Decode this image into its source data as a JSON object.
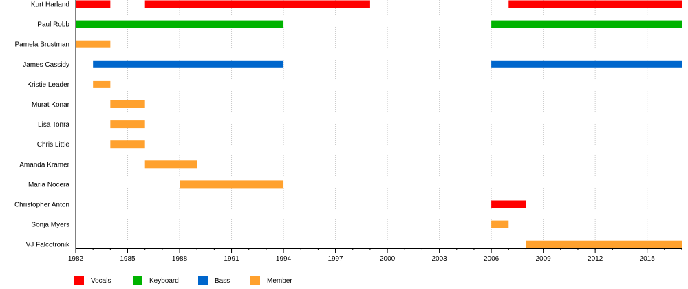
{
  "chart_data": {
    "type": "timeline",
    "x_range": [
      1982,
      2017
    ],
    "x_ticks": [
      "1982",
      "1985",
      "1988",
      "1991",
      "1994",
      "1997",
      "2000",
      "2003",
      "2006",
      "2009",
      "2012",
      "2015"
    ],
    "roles": [
      {
        "id": "vocals",
        "label": "Vocals",
        "color": "#ff0000"
      },
      {
        "id": "keyboard",
        "label": "Keyboard",
        "color": "#00b300"
      },
      {
        "id": "bass",
        "label": "Bass",
        "color": "#0066cc"
      },
      {
        "id": "member",
        "label": "Member",
        "color": "#ffa12e"
      }
    ],
    "rows": [
      {
        "name": "Kurt Harland",
        "spans": [
          {
            "role": "vocals",
            "start": 1982,
            "end": 1984
          },
          {
            "role": "vocals",
            "start": 1986,
            "end": 1999
          },
          {
            "role": "vocals",
            "start": 2007,
            "end": 2017
          }
        ]
      },
      {
        "name": "Paul Robb",
        "spans": [
          {
            "role": "keyboard",
            "start": 1982,
            "end": 1994
          },
          {
            "role": "keyboard",
            "start": 2006,
            "end": 2017
          }
        ]
      },
      {
        "name": "Pamela Brustman",
        "spans": [
          {
            "role": "member",
            "start": 1982,
            "end": 1984
          }
        ]
      },
      {
        "name": "James Cassidy",
        "spans": [
          {
            "role": "bass",
            "start": 1983,
            "end": 1994
          },
          {
            "role": "bass",
            "start": 2006,
            "end": 2017
          }
        ]
      },
      {
        "name": "Kristie Leader",
        "spans": [
          {
            "role": "member",
            "start": 1983,
            "end": 1984
          }
        ]
      },
      {
        "name": "Murat Konar",
        "spans": [
          {
            "role": "member",
            "start": 1984,
            "end": 1986
          }
        ]
      },
      {
        "name": "Lisa Tonra",
        "spans": [
          {
            "role": "member",
            "start": 1984,
            "end": 1986
          }
        ]
      },
      {
        "name": "Chris Little",
        "spans": [
          {
            "role": "member",
            "start": 1984,
            "end": 1986
          }
        ]
      },
      {
        "name": "Amanda Kramer",
        "spans": [
          {
            "role": "member",
            "start": 1986,
            "end": 1989
          }
        ]
      },
      {
        "name": "Maria Nocera",
        "spans": [
          {
            "role": "member",
            "start": 1988,
            "end": 1994
          }
        ]
      },
      {
        "name": "Christopher Anton",
        "spans": [
          {
            "role": "vocals",
            "start": 2006,
            "end": 2008
          }
        ]
      },
      {
        "name": "Sonja Myers",
        "spans": [
          {
            "role": "member",
            "start": 2006,
            "end": 2007
          }
        ]
      },
      {
        "name": "VJ Falcotronik",
        "spans": [
          {
            "role": "member",
            "start": 2008,
            "end": 2017
          }
        ]
      }
    ]
  }
}
